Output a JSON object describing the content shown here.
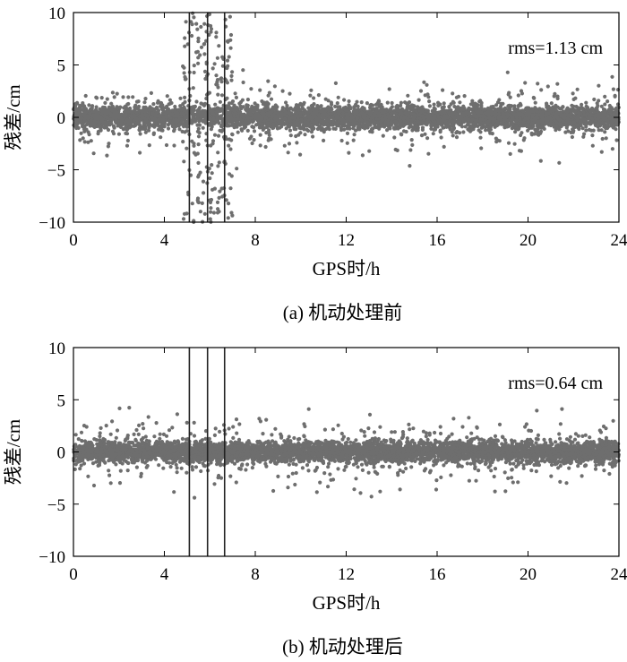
{
  "chart_data": [
    {
      "type": "scatter",
      "panel": "a",
      "caption": "(a) 机动处理前",
      "xlabel": "GPS时/h",
      "ylabel": "残差/cm",
      "xlim": [
        0,
        24
      ],
      "ylim": [
        -10,
        10
      ],
      "xticks": [
        0,
        4,
        8,
        12,
        16,
        20,
        24
      ],
      "yticks": [
        -10,
        -5,
        0,
        5,
        10
      ],
      "annotation": "rms=1.13 cm",
      "marker_color": "#6e6e6e",
      "maneuver_lines_x": [
        5.1,
        5.9,
        6.65
      ],
      "noise": {
        "core_sd_cm": 0.55,
        "outlier_sd_cm": 1.1,
        "maneuver_window_h": [
          4.8,
          7.0
        ],
        "maneuver_spread_cm": 10
      }
    },
    {
      "type": "scatter",
      "panel": "b",
      "caption": "(b) 机动处理后",
      "xlabel": "GPS时/h",
      "ylabel": "残差/cm",
      "xlim": [
        0,
        24
      ],
      "ylim": [
        -10,
        10
      ],
      "xticks": [
        0,
        4,
        8,
        12,
        16,
        20,
        24
      ],
      "yticks": [
        -10,
        -5,
        0,
        5,
        10
      ],
      "annotation": "rms=0.64 cm",
      "marker_color": "#6e6e6e",
      "maneuver_lines_x": [
        5.1,
        5.9,
        6.65
      ],
      "noise": {
        "core_sd_cm": 0.5,
        "outlier_sd_cm": 1.0,
        "maneuver_window_h": null,
        "maneuver_spread_cm": 0
      }
    }
  ]
}
